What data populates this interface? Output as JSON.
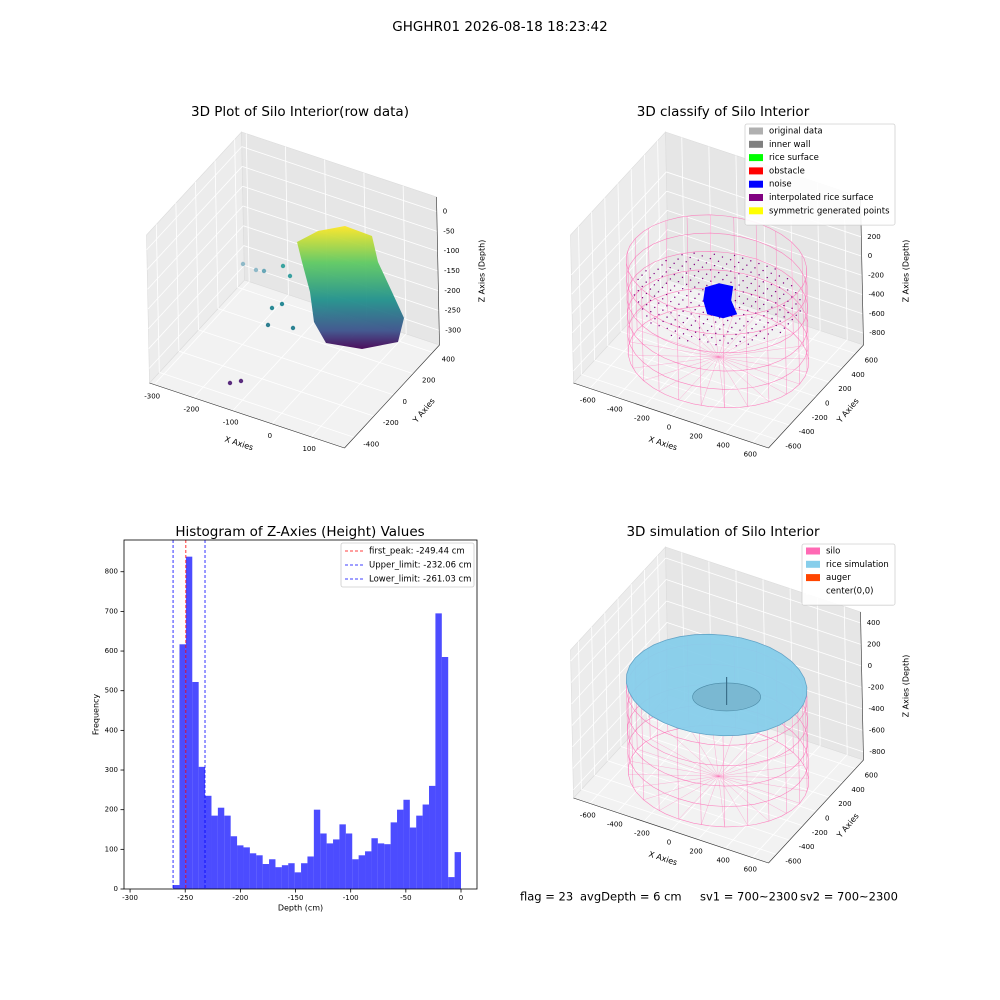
{
  "suptitle": "GHGHR01 2026-08-18 18:23:42",
  "footer": [
    "flag = 23",
    "avgDepth = 6 cm",
    "sv1 = 700~2300",
    "sv2 = 700~2300"
  ],
  "chart_data": [
    {
      "type": "scatter3d",
      "title": "3D Plot of Silo Interior(row data)",
      "xlabel": "X Axies",
      "ylabel": "Y Axies",
      "zlabel": "Z Axies (Depth)",
      "xlim": [
        -312,
        185
      ],
      "ylim": [
        -500,
        470
      ],
      "zlim": [
        -337,
        37
      ],
      "xticks": [
        -300,
        -200,
        -100,
        0,
        100
      ],
      "yticks": [
        -400,
        -200,
        0,
        200,
        400
      ],
      "zticks": [
        0,
        -50,
        -100,
        -150,
        -200,
        -250,
        -300
      ]
    },
    {
      "type": "scatter3d",
      "title": "3D classify of Silo Interior",
      "xlabel": "X Axies",
      "ylabel": "Y Axies",
      "zlabel": "Z Axies (Depth)",
      "xlim": [
        -720,
        720
      ],
      "ylim": [
        -720,
        720
      ],
      "zlim": [
        -923,
        615
      ],
      "xticks": [
        -600,
        -400,
        -200,
        0,
        200,
        400,
        600
      ],
      "yticks": [
        -600,
        -400,
        -200,
        0,
        200,
        400,
        600
      ],
      "zticks": [
        200,
        0,
        -200,
        -400,
        -600,
        -800
      ],
      "legend": [
        {
          "name": "original data",
          "color": "#b0b0b0"
        },
        {
          "name": "inner wall",
          "color": "#808080"
        },
        {
          "name": "rice surface",
          "color": "#00ff00"
        },
        {
          "name": "obstacle",
          "color": "#ff0000"
        },
        {
          "name": "noise",
          "color": "#0000ff"
        },
        {
          "name": "interpolated rice surface",
          "color": "#800080"
        },
        {
          "name": "symmetric generated points",
          "color": "#ffff00"
        }
      ]
    },
    {
      "type": "histogram",
      "title": "Histogram of Z-Axies (Height) Values",
      "xlabel": "Depth (cm)",
      "ylabel": "Frequency",
      "color": "#0000ff",
      "alpha": 0.7,
      "bins": [
        -261,
        -255.2,
        -249.4,
        -243.6,
        -237.8,
        -232,
        -226.2,
        -220.4,
        -214.6,
        -208.8,
        -203,
        -197.2,
        -191.4,
        -185.6,
        -179.8,
        -174,
        -168.2,
        -162.4,
        -156.6,
        -150.8,
        -145,
        -139.2,
        -133.4,
        -127.6,
        -121.8,
        -116,
        -110.2,
        -104.4,
        -98.6,
        -92.8,
        -87,
        -81.2,
        -75.4,
        -69.6,
        -63.8,
        -58,
        -52.2,
        -46.4,
        -40.6,
        -34.8,
        -29,
        -23.2,
        -17.4,
        -11.6,
        -5.8,
        0
      ],
      "values": [
        10,
        617,
        838,
        522,
        308,
        235,
        185,
        205,
        185,
        133,
        110,
        105,
        90,
        85,
        63,
        75,
        55,
        60,
        65,
        42,
        65,
        82,
        200,
        140,
        115,
        125,
        163,
        140,
        75,
        85,
        95,
        128,
        115,
        113,
        168,
        200,
        225,
        155,
        185,
        213,
        260,
        695,
        585,
        30,
        93
      ],
      "xlim": [
        -305.5,
        14.5
      ],
      "ylim": [
        0,
        880
      ],
      "xticks": [
        -300,
        -250,
        -200,
        -150,
        -100,
        -50,
        0
      ],
      "yticks": [
        0,
        100,
        200,
        300,
        400,
        500,
        600,
        700,
        800
      ],
      "vlines": [
        {
          "name": "first_peak: -249.44 cm",
          "value": -249.44,
          "color": "#ff0000"
        },
        {
          "name": "Upper_limit: -232.06 cm",
          "value": -232.06,
          "color": "#0000ff"
        },
        {
          "name": "Lower_limit: -261.03 cm",
          "value": -261.03,
          "color": "#0000ff"
        }
      ],
      "legend_loc": "upper right"
    },
    {
      "type": "surface3d",
      "title": "3D simulation of Silo Interior",
      "xlabel": "X Axies",
      "ylabel": "Y Axies",
      "zlabel": "Z Axies (Depth)",
      "xlim": [
        -720,
        720
      ],
      "ylim": [
        -720,
        720
      ],
      "zlim": [
        -876,
        503
      ],
      "xticks": [
        -600,
        -400,
        -200,
        0,
        200,
        400,
        600
      ],
      "yticks": [
        -600,
        -400,
        -200,
        0,
        200,
        400,
        600
      ],
      "zticks": [
        400,
        200,
        0,
        -200,
        -400,
        -600,
        -800
      ],
      "legend": [
        {
          "name": "silo",
          "color": "#ff69b4"
        },
        {
          "name": "rice simulation",
          "color": "#87ceeb"
        },
        {
          "name": "auger",
          "color": "#ff4500"
        },
        {
          "name": "center(0,0)",
          "color": "#ffffff"
        }
      ]
    }
  ]
}
